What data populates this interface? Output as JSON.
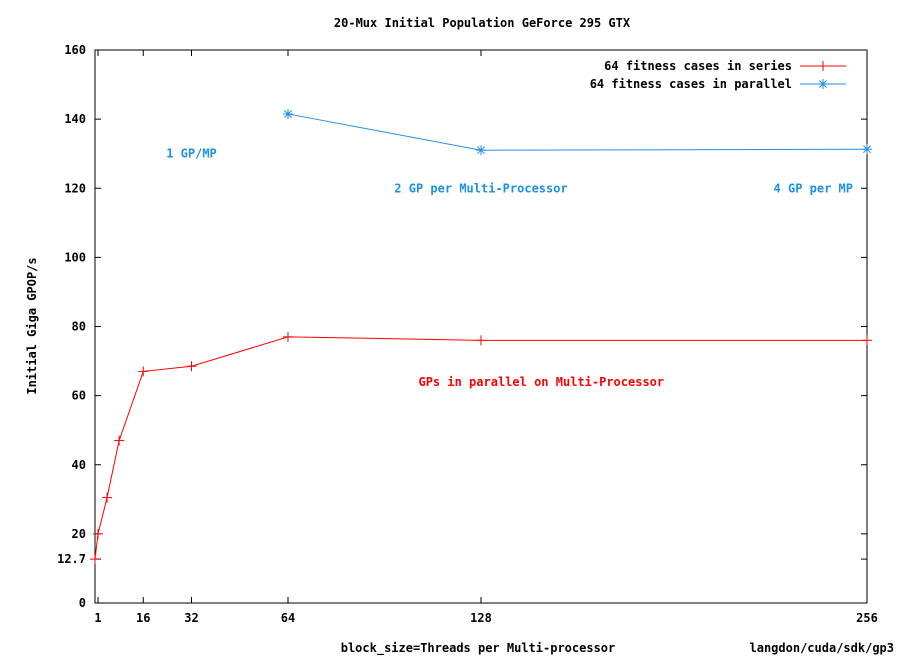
{
  "chart_data": {
    "type": "line",
    "title": "20-Mux Initial Population GeForce 295 GTX",
    "xlabel": "block_size=Threads per Multi-processor",
    "ylabel": "Initial Giga GPOP/s",
    "credit": "langdon/cuda/sdk/gp3",
    "xlim": [
      0,
      256
    ],
    "ylim": [
      0,
      160
    ],
    "xticks": [
      1,
      16,
      32,
      64,
      128,
      256
    ],
    "yticks": [
      0,
      12.7,
      20,
      40,
      60,
      80,
      100,
      120,
      140,
      160
    ],
    "ytick_labels": [
      "0",
      "12.7",
      "20",
      "40",
      "60",
      "80",
      "100",
      "120",
      "140",
      "160"
    ],
    "grid": false,
    "legend_position": "top-right",
    "series": [
      {
        "name": "64 fitness cases in series",
        "color": "#ff0000",
        "marker": "plus",
        "x": [
          0,
          1,
          4,
          8,
          16,
          32,
          64,
          128,
          256
        ],
        "y": [
          12.7,
          20,
          30.5,
          47,
          67,
          68.5,
          77,
          76,
          76
        ]
      },
      {
        "name": "64 fitness cases in parallel",
        "color": "#1e90e6",
        "marker": "star",
        "x": [
          64,
          128,
          256
        ],
        "y": [
          141.5,
          131,
          131.3
        ]
      }
    ],
    "annotations": [
      {
        "text": "1 GP/MP",
        "color": "#1e90e6",
        "x": 32,
        "y": 130
      },
      {
        "text": "2 GP per Multi-Processor",
        "color": "#1e90e6",
        "x": 128,
        "y": 120
      },
      {
        "text": "4 GP per MP",
        "color": "#1e90e6",
        "x": 256,
        "y": 120
      },
      {
        "text": "GPs in parallel on Multi-Processor",
        "color": "#ff0000",
        "x": 148,
        "y": 64
      }
    ]
  }
}
